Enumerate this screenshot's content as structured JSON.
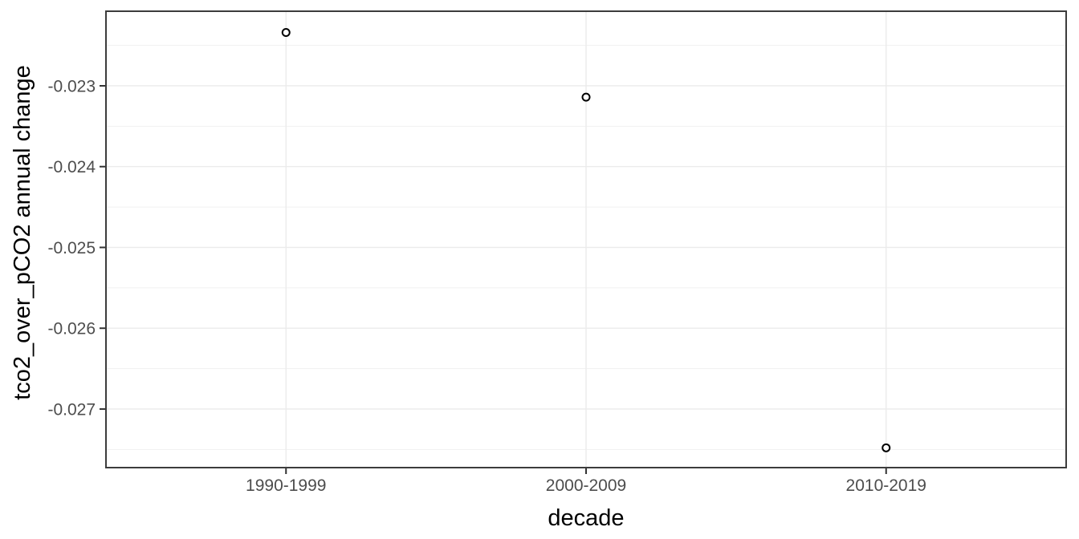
{
  "chart_data": {
    "type": "scatter",
    "title": "",
    "xlabel": "decade",
    "ylabel": "tco2_over_pCO2 annual change",
    "categories": [
      "1990-1999",
      "2000-2009",
      "2010-2019"
    ],
    "values": [
      -0.02234,
      -0.02314,
      -0.02748
    ],
    "y_ticks": [
      -0.023,
      -0.024,
      -0.025,
      -0.026,
      -0.027
    ],
    "y_tick_labels": [
      "-0.023",
      "-0.024",
      "-0.025",
      "-0.026",
      "-0.027"
    ],
    "y_minor_ticks": [
      -0.0225,
      -0.0235,
      -0.0245,
      -0.0255,
      -0.0265,
      -0.0275
    ],
    "ylim": [
      -0.027725,
      -0.022077
    ],
    "grid": true,
    "legend_position": "none",
    "point_style": "open-circle",
    "theme": "theme_bw",
    "colors": {
      "point_stroke": "#000000",
      "point_fill": "#FFFFFF",
      "axis_text": "#4D4D4D",
      "axis_title": "#000000",
      "grid_major": "#EBEBEB",
      "grid_minor": "#F1F1F1",
      "panel_border": "#3C3C3C",
      "tick_mark": "#333333",
      "panel_background": "#FFFFFF",
      "figure_background": "#FFFFFF"
    }
  }
}
